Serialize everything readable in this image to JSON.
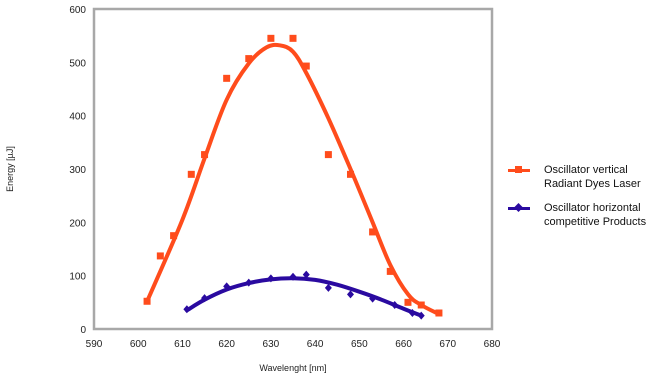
{
  "chart_data": {
    "type": "scatter",
    "xlabel": "Wavelenght [nm]",
    "ylabel": "Energy [µJ]",
    "xlim": [
      590,
      680
    ],
    "ylim": [
      0,
      600
    ],
    "xticks": [
      590,
      600,
      610,
      620,
      630,
      640,
      650,
      660,
      670,
      680
    ],
    "yticks": [
      0,
      100,
      200,
      300,
      400,
      500,
      600
    ],
    "grid": false,
    "legend_position": "right",
    "series": [
      {
        "name": "Oscillator vertical Radiant Dyes Laser",
        "legend_lines": [
          "Oscillator vertical",
          "Radiant Dyes Laser"
        ],
        "color": "#ff4c1c",
        "marker": "square",
        "points": [
          [
            602,
            52
          ],
          [
            605,
            137
          ],
          [
            608,
            175
          ],
          [
            612,
            290
          ],
          [
            615,
            327
          ],
          [
            620,
            470
          ],
          [
            625,
            507
          ],
          [
            630,
            545
          ],
          [
            635,
            545
          ],
          [
            638,
            493
          ],
          [
            643,
            327
          ],
          [
            648,
            290
          ],
          [
            653,
            182
          ],
          [
            657,
            108
          ],
          [
            661,
            50
          ],
          [
            664,
            45
          ],
          [
            668,
            30
          ]
        ],
        "curve": [
          [
            602,
            52
          ],
          [
            610,
            205
          ],
          [
            615,
            320
          ],
          [
            620,
            430
          ],
          [
            625,
            498
          ],
          [
            629,
            528
          ],
          [
            632,
            532
          ],
          [
            635,
            520
          ],
          [
            638,
            480
          ],
          [
            643,
            395
          ],
          [
            648,
            300
          ],
          [
            653,
            200
          ],
          [
            657,
            120
          ],
          [
            661,
            65
          ],
          [
            664,
            45
          ],
          [
            668,
            28
          ]
        ]
      },
      {
        "name": "Oscillator horizontal competitive Products",
        "legend_lines": [
          "Oscillator horizontal",
          "competitive Products"
        ],
        "color": "#2a0aa0",
        "marker": "diamond",
        "points": [
          [
            611,
            37
          ],
          [
            615,
            58
          ],
          [
            620,
            80
          ],
          [
            625,
            87
          ],
          [
            630,
            95
          ],
          [
            635,
            98
          ],
          [
            638,
            102
          ],
          [
            643,
            77
          ],
          [
            648,
            65
          ],
          [
            653,
            57
          ],
          [
            658,
            45
          ],
          [
            662,
            30
          ],
          [
            664,
            25
          ]
        ],
        "curve": [
          [
            611,
            35
          ],
          [
            615,
            55
          ],
          [
            620,
            74
          ],
          [
            625,
            86
          ],
          [
            630,
            93
          ],
          [
            635,
            95
          ],
          [
            640,
            92
          ],
          [
            645,
            83
          ],
          [
            650,
            70
          ],
          [
            655,
            55
          ],
          [
            660,
            38
          ],
          [
            664,
            25
          ]
        ]
      }
    ]
  }
}
